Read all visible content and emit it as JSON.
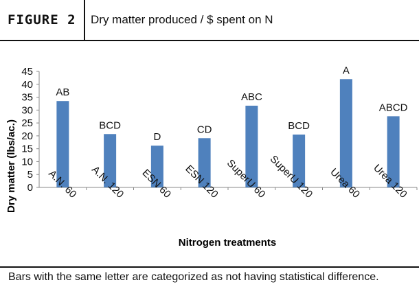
{
  "figure": {
    "label": "FIGURE 2",
    "title": "Dry matter produced / $ spent on N"
  },
  "footnote": "Bars with the same letter are categorized as not having statistical difference.",
  "colors": {
    "bar": "#4f81bd",
    "text": "#111111"
  },
  "chart_data": {
    "type": "bar",
    "categories": [
      "A.N. 60",
      "A.N. 120",
      "ESN 60",
      "ESN 120",
      "SuperU 60",
      "SuperU 120",
      "Urea 60",
      "Urea 120"
    ],
    "values": [
      33.5,
      20.7,
      16.2,
      19.1,
      31.7,
      20.5,
      42.0,
      27.6
    ],
    "letters": [
      "AB",
      "BCD",
      "D",
      "CD",
      "ABC",
      "BCD",
      "A",
      "ABCD"
    ],
    "title": "",
    "xlabel": "Nitrogen treatments",
    "ylabel": "Dry matter (lbs/ac.)",
    "ylim": [
      0,
      45
    ],
    "yticks": [
      0,
      5,
      10,
      15,
      20,
      25,
      30,
      35,
      40,
      45
    ],
    "grid": false,
    "legend": "none"
  }
}
